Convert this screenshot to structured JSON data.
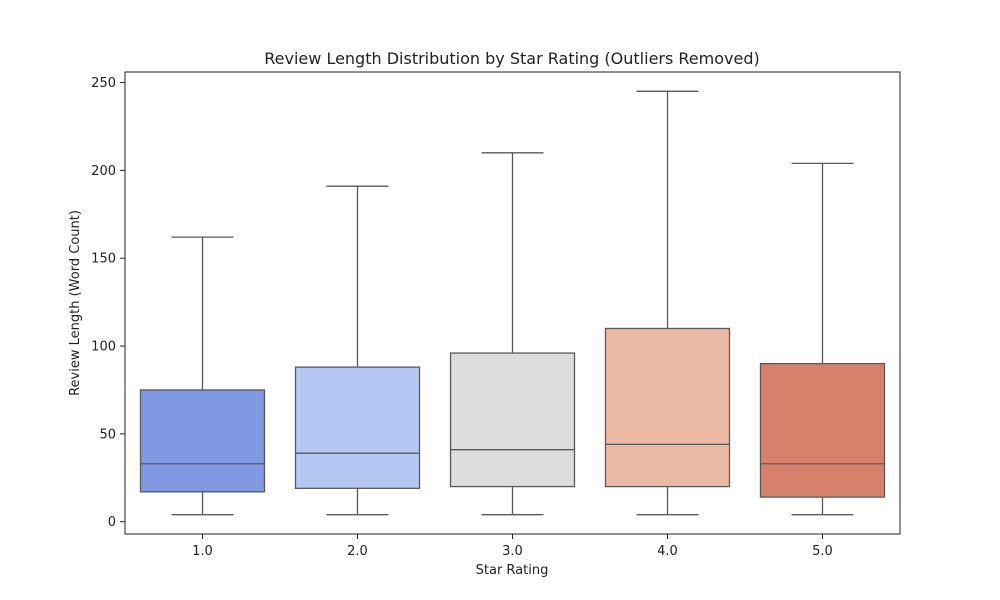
{
  "chart_data": {
    "type": "box",
    "title": "Review Length Distribution by Star Rating (Outliers Removed)",
    "xlabel": "Star Rating",
    "ylabel": "Review Length (Word Count)",
    "ylim": [
      -7,
      256
    ],
    "yticks": [
      0,
      50,
      100,
      150,
      200,
      250
    ],
    "grid": false,
    "categories": [
      "1.0",
      "2.0",
      "3.0",
      "4.0",
      "5.0"
    ],
    "boxes": [
      {
        "category": "1.0",
        "whisker_low": 4,
        "q1": 17,
        "median": 33,
        "q3": 75,
        "whisker_high": 162,
        "color": "#8099e3"
      },
      {
        "category": "2.0",
        "whisker_low": 4,
        "q1": 19,
        "median": 39,
        "q3": 88,
        "whisker_high": 191,
        "color": "#b5c8f4"
      },
      {
        "category": "3.0",
        "whisker_low": 4,
        "q1": 20,
        "median": 41,
        "q3": 96,
        "whisker_high": 210,
        "color": "#dcdcdc"
      },
      {
        "category": "4.0",
        "whisker_low": 4,
        "q1": 20,
        "median": 44,
        "q3": 110,
        "whisker_high": 245,
        "color": "#ecbaa4"
      },
      {
        "category": "5.0",
        "whisker_low": 4,
        "q1": 14,
        "median": 33,
        "q3": 90,
        "whisker_high": 204,
        "color": "#d7806c"
      }
    ],
    "line_color": "#5a5a5a"
  }
}
